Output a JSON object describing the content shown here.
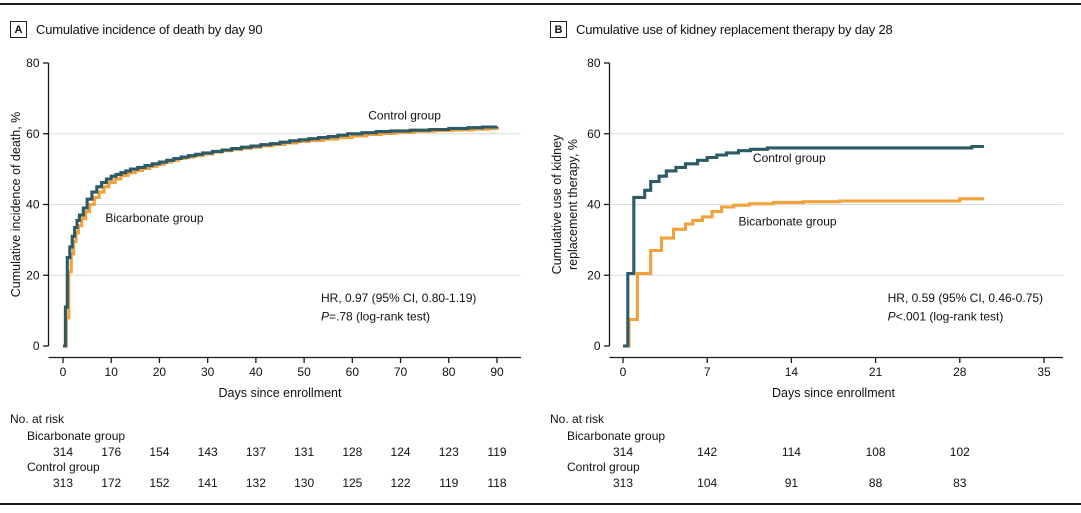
{
  "figure": {
    "panels": [
      {
        "letter": "A",
        "title": "Cumulative incidence of death by day 90",
        "risk_table": {
          "heading": "No. at risk",
          "rows": [
            {
              "label": "Bicarbonate group",
              "values": [
                314,
                176,
                154,
                143,
                137,
                131,
                128,
                124,
                123,
                119
              ]
            },
            {
              "label": "Control group",
              "values": [
                313,
                172,
                152,
                141,
                132,
                130,
                125,
                122,
                119,
                118
              ]
            }
          ]
        }
      },
      {
        "letter": "B",
        "title": "Cumulative use of kidney replacement therapy by day 28",
        "risk_table": {
          "heading": "No. at risk",
          "rows": [
            {
              "label": "Bicarbonate group",
              "values": [
                314,
                142,
                114,
                108,
                102
              ]
            },
            {
              "label": "Control group",
              "values": [
                313,
                104,
                91,
                88,
                83
              ]
            }
          ]
        }
      }
    ]
  },
  "chart_data": [
    {
      "type": "line",
      "step": true,
      "title": "Cumulative incidence of death by day 90",
      "xlabel": "Days since enrollment",
      "ylabel_lines": [
        "Cumulative incidence of death, %"
      ],
      "xlim": [
        0,
        90
      ],
      "ylim": [
        0,
        80
      ],
      "xticks": [
        0,
        10,
        20,
        30,
        40,
        50,
        60,
        70,
        80,
        90
      ],
      "yticks": [
        0,
        20,
        40,
        60,
        80
      ],
      "gridlines_y": [
        20,
        40,
        60
      ],
      "series": [
        {
          "name": "Control group",
          "color": "#2C5A66",
          "label_pos": [
            63.3,
            64
          ],
          "points": [
            [
              0,
              0
            ],
            [
              0.5,
              11
            ],
            [
              0.9,
              25
            ],
            [
              1.4,
              28
            ],
            [
              1.9,
              31
            ],
            [
              2.4,
              33.5
            ],
            [
              2.9,
              35.5
            ],
            [
              3.4,
              37
            ],
            [
              4.2,
              39
            ],
            [
              5,
              41.5
            ],
            [
              6,
              43.5
            ],
            [
              7,
              45
            ],
            [
              8,
              46.2
            ],
            [
              9,
              47.2
            ],
            [
              10,
              48
            ],
            [
              11,
              48.5
            ],
            [
              12,
              49
            ],
            [
              13,
              49.5
            ],
            [
              14,
              50
            ],
            [
              15.5,
              50.5
            ],
            [
              17,
              51
            ],
            [
              18.5,
              51.5
            ],
            [
              20,
              52
            ],
            [
              21.5,
              52.5
            ],
            [
              23,
              53
            ],
            [
              24.5,
              53.4
            ],
            [
              26,
              53.8
            ],
            [
              27.5,
              54.2
            ],
            [
              29,
              54.6
            ],
            [
              31,
              55
            ],
            [
              33,
              55.4
            ],
            [
              35,
              55.8
            ],
            [
              37,
              56.2
            ],
            [
              39,
              56.5
            ],
            [
              41,
              56.9
            ],
            [
              43,
              57.2
            ],
            [
              45,
              57.6
            ],
            [
              47,
              58
            ],
            [
              49,
              58.3
            ],
            [
              51,
              58.6
            ],
            [
              53,
              58.9
            ],
            [
              55,
              59.2
            ],
            [
              57,
              59.6
            ],
            [
              59,
              60
            ],
            [
              62,
              60.3
            ],
            [
              65,
              60.6
            ],
            [
              68,
              60.8
            ],
            [
              72,
              61
            ],
            [
              76,
              61.2
            ],
            [
              80,
              61.5
            ],
            [
              84,
              61.7
            ],
            [
              87,
              61.9
            ],
            [
              90,
              62
            ]
          ]
        },
        {
          "name": "Bicarbonate group",
          "color": "#F2A23C",
          "label_pos": [
            8.8,
            35
          ],
          "points": [
            [
              0,
              0
            ],
            [
              0.7,
              8
            ],
            [
              1.2,
              21
            ],
            [
              1.7,
              26
            ],
            [
              2.2,
              29.5
            ],
            [
              2.7,
              32
            ],
            [
              3.2,
              34
            ],
            [
              3.9,
              36
            ],
            [
              4.7,
              38
            ],
            [
              5.5,
              40
            ],
            [
              6.5,
              42
            ],
            [
              7.5,
              43.5
            ],
            [
              8.5,
              45
            ],
            [
              9.5,
              46.2
            ],
            [
              10.8,
              47.2
            ],
            [
              12,
              48.2
            ],
            [
              13.5,
              49
            ],
            [
              15,
              49.6
            ],
            [
              16.5,
              50.2
            ],
            [
              18,
              50.8
            ],
            [
              19.5,
              51.4
            ],
            [
              21,
              52
            ],
            [
              22.5,
              52.5
            ],
            [
              24,
              53
            ],
            [
              25.5,
              53.4
            ],
            [
              27,
              53.8
            ],
            [
              29,
              54.3
            ],
            [
              31,
              54.8
            ],
            [
              33,
              55.2
            ],
            [
              35,
              55.6
            ],
            [
              37,
              55.9
            ],
            [
              39,
              56.2
            ],
            [
              41,
              56.6
            ],
            [
              43.5,
              57
            ],
            [
              46,
              57.4
            ],
            [
              48.5,
              57.8
            ],
            [
              51,
              58.1
            ],
            [
              54,
              58.5
            ],
            [
              57,
              58.9
            ],
            [
              60,
              59.4
            ],
            [
              63,
              59.8
            ],
            [
              66,
              60.1
            ],
            [
              69,
              60.4
            ],
            [
              73,
              60.7
            ],
            [
              77,
              60.9
            ],
            [
              81,
              61.1
            ],
            [
              85,
              61.3
            ],
            [
              88,
              61.5
            ],
            [
              90,
              61.6
            ]
          ]
        }
      ],
      "annotation": {
        "x": 53.5,
        "y1": 12.5,
        "y2": 7.2,
        "line1": "HR, 0.97 (95% CI, 0.80-1.19)",
        "p_italic": "P",
        "line2": "=.78 (log-rank test)"
      }
    },
    {
      "type": "line",
      "step": true,
      "title": "Cumulative use of kidney replacement therapy by day 28",
      "xlabel": "Days since enrollment",
      "ylabel_lines": [
        "Cumulative use of kidney",
        "replacement therapy, %"
      ],
      "xlim": [
        0,
        35
      ],
      "ylim": [
        0,
        80
      ],
      "xticks": [
        0,
        7,
        14,
        21,
        28,
        35
      ],
      "yticks": [
        0,
        20,
        40,
        60,
        80
      ],
      "gridlines_y": [
        20,
        40,
        60
      ],
      "series": [
        {
          "name": "Control group",
          "color": "#2C5A66",
          "label_pos": [
            10.8,
            52
          ],
          "points": [
            [
              0,
              0
            ],
            [
              0.4,
              20.5
            ],
            [
              0.9,
              42
            ],
            [
              1.8,
              44
            ],
            [
              2.3,
              46.5
            ],
            [
              3,
              48
            ],
            [
              3.6,
              49.5
            ],
            [
              4.4,
              50.5
            ],
            [
              5.2,
              51.5
            ],
            [
              6.2,
              52.5
            ],
            [
              7,
              53.3
            ],
            [
              7.8,
              54
            ],
            [
              8.6,
              54.6
            ],
            [
              9.6,
              55.2
            ],
            [
              10.6,
              55.6
            ],
            [
              12,
              56
            ],
            [
              28.6,
              56
            ],
            [
              29,
              56.4
            ],
            [
              30,
              56.4
            ]
          ]
        },
        {
          "name": "Bicarbonate group",
          "color": "#F2A23C",
          "label_pos": [
            9.6,
            34
          ],
          "points": [
            [
              0,
              0
            ],
            [
              0.5,
              7.5
            ],
            [
              1.2,
              20.5
            ],
            [
              2.3,
              27
            ],
            [
              3.2,
              30.5
            ],
            [
              4.2,
              33
            ],
            [
              5.2,
              34.5
            ],
            [
              5.8,
              35.5
            ],
            [
              6.6,
              36.5
            ],
            [
              7.4,
              38
            ],
            [
              8.2,
              39.3
            ],
            [
              9.2,
              39.8
            ],
            [
              10.5,
              40.2
            ],
            [
              12.5,
              40.6
            ],
            [
              15,
              40.8
            ],
            [
              18,
              41
            ],
            [
              27.6,
              41
            ],
            [
              28,
              41.6
            ],
            [
              30,
              41.6
            ]
          ]
        }
      ],
      "annotation": {
        "x": 22,
        "y1": 12.5,
        "y2": 7.2,
        "line1": "HR, 0.59 (95% CI, 0.46-0.75)",
        "p_italic": "P",
        "line2": "<.001 (log-rank test)"
      }
    }
  ]
}
